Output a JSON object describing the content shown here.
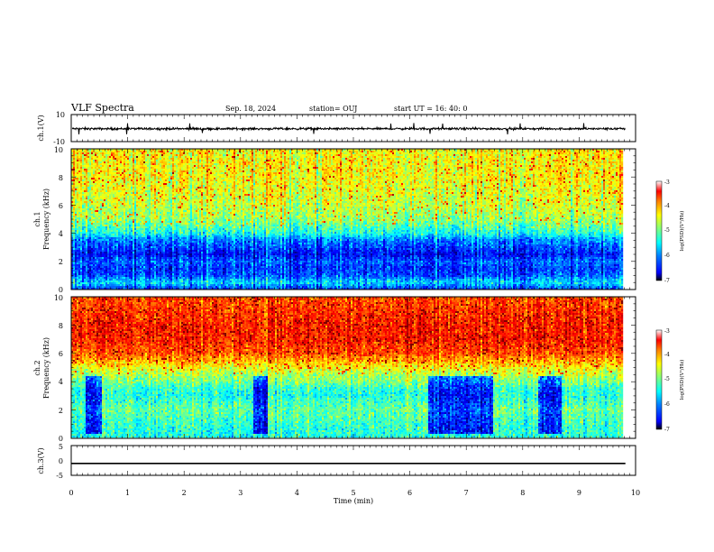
{
  "header": {
    "title": "VLF Spectra",
    "date": "Sep. 18, 2024",
    "station": "station= OUJ",
    "start": "start  UT =   16: 40: 0"
  },
  "colors": {
    "jet": [
      "#00007f",
      "#0000ff",
      "#007fff",
      "#00ffff",
      "#7fff7f",
      "#ffff00",
      "#ff7f00",
      "#ff0000",
      "#7f0000"
    ],
    "frame": "#000000",
    "waveform": "#000000"
  },
  "chart_data": [
    {
      "type": "line",
      "panel": "waveform-ch1",
      "ylabel": "ch.1(V)",
      "ylim": [
        -10,
        10
      ],
      "ytick_labels": [
        "10",
        "-10"
      ],
      "x_range_min": [
        0,
        10
      ],
      "series": [
        {
          "baseline_v": -0.5,
          "noise_amplitude_v": 1.5
        }
      ]
    },
    {
      "type": "heatmap",
      "panel": "spectrogram-ch1",
      "ylabel": "ch.1\nFrequency (kHz)",
      "ylim": [
        0,
        10
      ],
      "ytick_labels": [
        "0",
        "2",
        "4",
        "6",
        "8",
        "10"
      ],
      "x_range_min": [
        0,
        9.8
      ],
      "colorbar": {
        "label": "log(PSD)(V²/Hz)",
        "range": [
          -7,
          -3
        ],
        "tick_labels": [
          "-3",
          "-4",
          "-5",
          "-6",
          "-7"
        ]
      },
      "frequency_profile": {
        "freq_khz": [
          0,
          0.5,
          1,
          1.5,
          2,
          2.5,
          3,
          3.5,
          4,
          5,
          6,
          7,
          8,
          9,
          9.8
        ],
        "log_psd": [
          -6.3,
          -5.6,
          -6.2,
          -6.3,
          -6.1,
          -6.5,
          -6.2,
          -6.0,
          -5.4,
          -4.9,
          -4.7,
          -4.6,
          -4.5,
          -4.5,
          -4.5
        ]
      }
    },
    {
      "type": "heatmap",
      "panel": "spectrogram-ch2",
      "ylabel": "ch.2\nFrequency (kHz)",
      "ylim": [
        0,
        10
      ],
      "ytick_labels": [
        "0",
        "2",
        "4",
        "6",
        "8",
        "10"
      ],
      "x_range_min": [
        0,
        9.8
      ],
      "colorbar": {
        "label": "log(PSD)(V²/Hz)",
        "range": [
          -7,
          -3
        ],
        "tick_labels": [
          "-3",
          "-4",
          "-5",
          "-6",
          "-7"
        ]
      },
      "frequency_profile": {
        "freq_khz": [
          0,
          1,
          2,
          3,
          3.5,
          4,
          4.5,
          5,
          6,
          7,
          8,
          9,
          9.8
        ],
        "log_psd": [
          -5.4,
          -5.3,
          -5.1,
          -5.4,
          -5.3,
          -5.0,
          -4.8,
          -4.5,
          -3.8,
          -3.6,
          -3.6,
          -3.7,
          -3.8
        ]
      },
      "burst_windows_min": [
        [
          0.25,
          0.55
        ],
        [
          3.25,
          3.5
        ],
        [
          6.35,
          7.5
        ],
        [
          8.3,
          8.7
        ]
      ]
    },
    {
      "type": "line",
      "panel": "waveform-ch3",
      "ylabel": "ch.3(V)",
      "ylim": [
        -5,
        5
      ],
      "ytick_labels": [
        "5",
        "0",
        "-5"
      ],
      "x_range_min": [
        0,
        9.8
      ],
      "series": [
        {
          "constant_v": -1
        }
      ]
    },
    {
      "type": "axis",
      "panel": "time-axis",
      "xlabel": "Time (min)",
      "xlim": [
        0,
        10
      ],
      "xtick_labels": [
        "0",
        "1",
        "2",
        "3",
        "4",
        "5",
        "6",
        "7",
        "8",
        "9",
        "10"
      ]
    }
  ]
}
